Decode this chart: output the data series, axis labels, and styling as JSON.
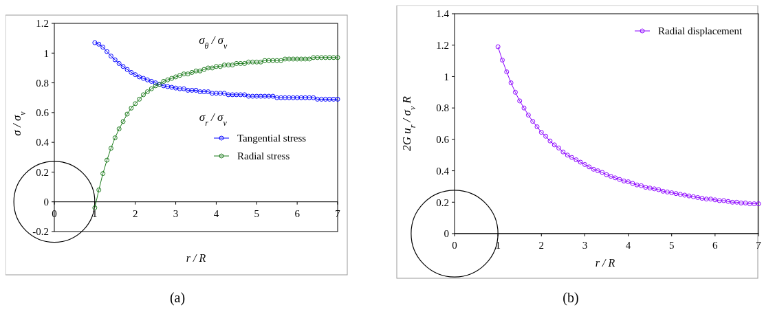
{
  "chart_data": [
    {
      "type": "line",
      "title": "(a)",
      "xlabel": "r / R",
      "ylabel": "σ / σ$_{v}$",
      "xlim": [
        0,
        7
      ],
      "xticks": [
        0,
        1,
        2,
        3,
        4,
        5,
        6,
        7
      ],
      "ylim": [
        -0.2,
        1.2
      ],
      "yticks": [
        -0.2,
        0,
        0.2,
        0.4,
        0.6,
        0.8,
        1,
        1.2
      ],
      "grid": false,
      "legend": "bottom right",
      "marker": "circle",
      "line_style": "solid",
      "x": [
        1,
        1.1,
        1.2,
        1.3,
        1.4,
        1.5,
        1.6,
        1.7,
        1.8,
        1.9,
        2,
        2.1,
        2.2,
        2.3,
        2.4,
        2.5,
        2.6,
        2.7,
        2.8,
        2.9,
        3,
        3.1,
        3.2,
        3.3,
        3.4,
        3.5,
        3.6,
        3.7,
        3.8,
        3.9,
        4,
        4.1,
        4.2,
        4.3,
        4.4,
        4.5,
        4.6,
        4.7,
        4.8,
        4.9,
        5,
        5.1,
        5.2,
        5.3,
        5.4,
        5.5,
        5.6,
        5.7,
        5.8,
        5.9,
        6,
        6.1,
        6.2,
        6.3,
        6.4,
        6.5,
        6.6,
        6.7,
        6.8,
        6.9,
        7
      ],
      "annotations": [
        "σ$_{θ}$ / σ$_{v}$",
        "σ$_{r}$ / σ$_{v}$"
      ],
      "series": [
        {
          "name": "Tangential stress",
          "color": "#0000ff",
          "values": [
            1.07,
            1.06,
            1.04,
            1.01,
            0.98,
            0.955,
            0.93,
            0.91,
            0.89,
            0.87,
            0.855,
            0.84,
            0.83,
            0.82,
            0.81,
            0.8,
            0.79,
            0.78,
            0.775,
            0.77,
            0.765,
            0.76,
            0.76,
            0.75,
            0.75,
            0.75,
            0.74,
            0.74,
            0.74,
            0.73,
            0.73,
            0.73,
            0.73,
            0.72,
            0.72,
            0.72,
            0.72,
            0.72,
            0.71,
            0.71,
            0.71,
            0.71,
            0.71,
            0.71,
            0.71,
            0.7,
            0.7,
            0.7,
            0.7,
            0.7,
            0.7,
            0.7,
            0.7,
            0.7,
            0.7,
            0.69,
            0.69,
            0.69,
            0.69,
            0.69,
            0.69
          ]
        },
        {
          "name": "Radial stress",
          "color": "#1a7a1a",
          "values": [
            -0.04,
            0.08,
            0.19,
            0.28,
            0.36,
            0.43,
            0.49,
            0.54,
            0.59,
            0.63,
            0.66,
            0.69,
            0.72,
            0.74,
            0.76,
            0.78,
            0.79,
            0.81,
            0.82,
            0.83,
            0.84,
            0.85,
            0.86,
            0.86,
            0.87,
            0.88,
            0.88,
            0.89,
            0.9,
            0.9,
            0.91,
            0.91,
            0.92,
            0.92,
            0.92,
            0.93,
            0.93,
            0.93,
            0.94,
            0.94,
            0.94,
            0.94,
            0.95,
            0.95,
            0.95,
            0.95,
            0.95,
            0.96,
            0.96,
            0.96,
            0.96,
            0.96,
            0.96,
            0.96,
            0.97,
            0.97,
            0.97,
            0.97,
            0.97,
            0.97,
            0.97
          ]
        }
      ]
    },
    {
      "type": "line",
      "title": "(b)",
      "xlabel": "r / R",
      "ylabel": "2G u$_{r}$ / σ$_{v}$ R",
      "xlim": [
        0,
        7
      ],
      "xticks": [
        0,
        1,
        2,
        3,
        4,
        5,
        6,
        7
      ],
      "ylim": [
        0,
        1.4
      ],
      "yticks": [
        0,
        0.2,
        0.4,
        0.6,
        0.8,
        1,
        1.2,
        1.4
      ],
      "grid": false,
      "legend": "top right",
      "marker": "circle",
      "line_style": "solid",
      "x": [
        1,
        1.1,
        1.2,
        1.3,
        1.4,
        1.5,
        1.6,
        1.7,
        1.8,
        1.9,
        2,
        2.1,
        2.2,
        2.3,
        2.4,
        2.5,
        2.6,
        2.7,
        2.8,
        2.9,
        3,
        3.1,
        3.2,
        3.3,
        3.4,
        3.5,
        3.6,
        3.7,
        3.8,
        3.9,
        4,
        4.1,
        4.2,
        4.3,
        4.4,
        4.5,
        4.6,
        4.7,
        4.8,
        4.9,
        5,
        5.1,
        5.2,
        5.3,
        5.4,
        5.5,
        5.6,
        5.7,
        5.8,
        5.9,
        6,
        6.1,
        6.2,
        6.3,
        6.4,
        6.5,
        6.6,
        6.7,
        6.8,
        6.9,
        7
      ],
      "series": [
        {
          "name": "Radial displacement",
          "color": "#8b00ff",
          "values": [
            1.19,
            1.105,
            1.03,
            0.96,
            0.9,
            0.845,
            0.8,
            0.755,
            0.715,
            0.68,
            0.645,
            0.62,
            0.59,
            0.565,
            0.545,
            0.52,
            0.5,
            0.485,
            0.47,
            0.455,
            0.44,
            0.425,
            0.41,
            0.4,
            0.39,
            0.375,
            0.365,
            0.355,
            0.345,
            0.335,
            0.33,
            0.32,
            0.31,
            0.305,
            0.295,
            0.29,
            0.285,
            0.28,
            0.27,
            0.265,
            0.26,
            0.255,
            0.25,
            0.245,
            0.24,
            0.235,
            0.23,
            0.225,
            0.22,
            0.22,
            0.215,
            0.21,
            0.21,
            0.205,
            0.2,
            0.2,
            0.195,
            0.195,
            0.19,
            0.19,
            0.19
          ]
        }
      ]
    }
  ]
}
